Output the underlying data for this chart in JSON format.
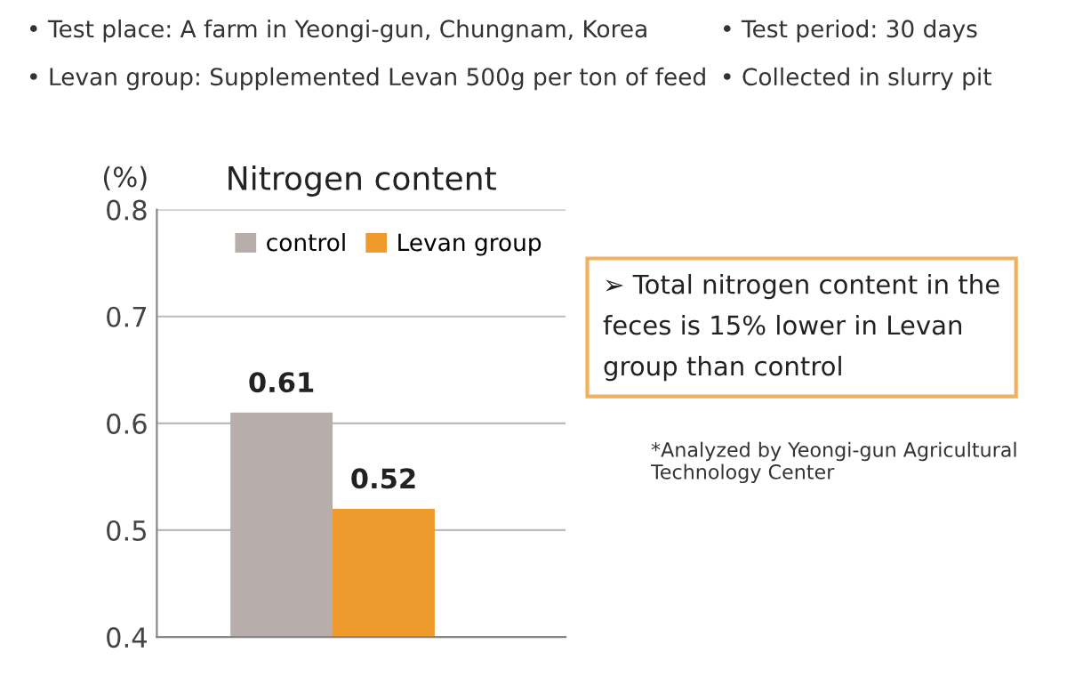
{
  "chart_data": {
    "type": "bar",
    "title": "Nitrogen content",
    "ylabel": "(%)",
    "categories": [
      null
    ],
    "series": [
      {
        "name": "control",
        "color": "#b7aeab",
        "values": [
          0.61
        ]
      },
      {
        "name": "Levan group",
        "color": "#ee9a2c",
        "values": [
          0.52
        ]
      }
    ],
    "ylim": [
      0.4,
      0.8
    ],
    "yticks": [
      0.4,
      0.5,
      0.6,
      0.7,
      0.8
    ],
    "grid": "y",
    "legend": "top right",
    "data_labels": true,
    "annotations": [
      "• Test place: A farm in Yeongi-gun, Chungnam, Korea",
      "• Levan group: Supplemented Levan 500g per ton of feed",
      "• Test period: 30 days",
      "• Collected in slurry pit",
      "➢ Total nitrogen content in the\nfeces is 15% lower in Levan\ngroup than control",
      "*Analyzed by Yeongi-gun Agricultural\nTechnology Center"
    ]
  }
}
